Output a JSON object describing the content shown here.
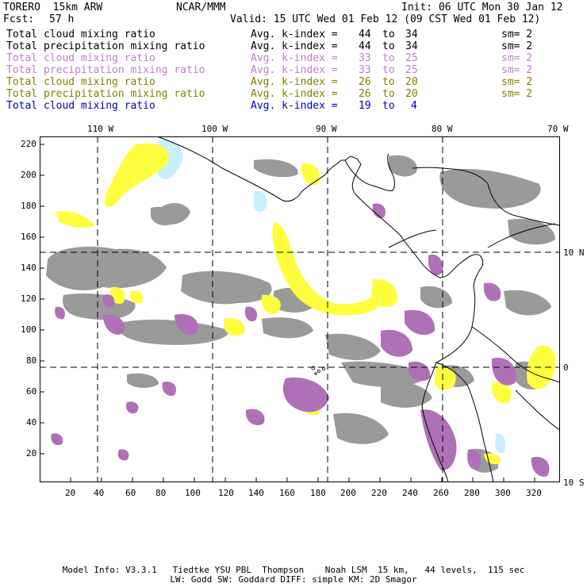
{
  "header": {
    "model": "TORERO  15km ARW",
    "org": "NCAR/MMM",
    "init": "Init: 06 UTC Mon 30 Jan 12",
    "fcst_label": "Fcst:",
    "fcst_value": "57 h",
    "valid": "Valid: 15 UTC Wed 01 Feb 12 (09 CST Wed 01 Feb 12)"
  },
  "legend": [
    {
      "field": "Total cloud mixing ratio",
      "kindex": "Avg. k-index =",
      "from": "44",
      "to_word": "to",
      "to": "34",
      "sm": "sm= 2",
      "color": "#000000"
    },
    {
      "field": "Total precipitation mixing ratio",
      "kindex": "Avg. k-index =",
      "from": "44",
      "to_word": "to",
      "to": "34",
      "sm": "sm= 2",
      "color": "#000000"
    },
    {
      "field": "Total cloud mixing ratio",
      "kindex": "Avg. k-index =",
      "from": "33",
      "to_word": "to",
      "to": "25",
      "sm": "sm= 2",
      "color": "#c080c8"
    },
    {
      "field": "Total precipitation mixing ratio",
      "kindex": "Avg. k-index =",
      "from": "33",
      "to_word": "to",
      "to": "25",
      "sm": "sm= 2",
      "color": "#c080c8"
    },
    {
      "field": "Total cloud mixing ratio",
      "kindex": "Avg. k-index =",
      "from": "26",
      "to_word": "to",
      "to": "20",
      "sm": "sm= 2",
      "color": "#808000"
    },
    {
      "field": "Total precipitation mixing ratio",
      "kindex": "Avg. k-index =",
      "from": "26",
      "to_word": "to",
      "to": "20",
      "sm": "sm= 2",
      "color": "#808000"
    },
    {
      "field": "Total cloud mixing ratio",
      "kindex": "Avg. k-index =",
      "from": "19",
      "to_word": "to",
      "to": "4",
      "sm": "",
      "color": "#0000c0"
    }
  ],
  "map": {
    "lon_labels": [
      "110 W",
      "100 W",
      "90 W",
      "80 W",
      "70 W"
    ],
    "lat_labels": [
      "10 N",
      "0",
      "10 S"
    ],
    "x_ticks": [
      "20",
      "40",
      "60",
      "80",
      "100",
      "120",
      "140",
      "160",
      "180",
      "200",
      "220",
      "240",
      "260",
      "280",
      "300",
      "320"
    ],
    "y_ticks": [
      "220",
      "200",
      "180",
      "160",
      "140",
      "120",
      "100",
      "80",
      "60",
      "40",
      "20"
    ],
    "x_range": [
      0,
      334
    ],
    "y_range": [
      0,
      222
    ],
    "colors": {
      "gray": "#9a9a9a",
      "purple": "#b070b8",
      "yellow": "#ffff40",
      "lightblue": "#c8f0ff",
      "coast": "#000000"
    }
  },
  "footer": {
    "line1": "Model Info: V3.3.1   Tiedtke YSU PBL  Thompson    Noah LSM  15 km,   44 levels,  115 sec",
    "line2": "LW: Godd SW: Goddard DIFF: simple KM: 2D Smagor"
  }
}
